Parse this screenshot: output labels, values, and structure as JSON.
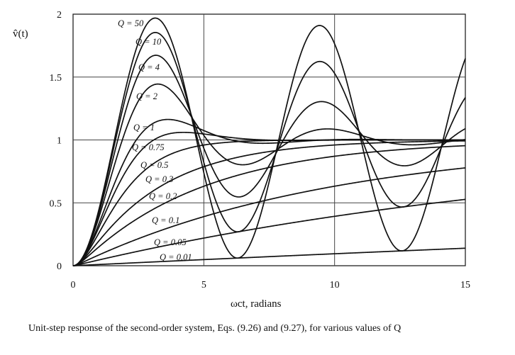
{
  "chart_data": {
    "type": "line",
    "xlabel": "ωct, radians",
    "ylabel": "v̂(t)",
    "xlim": [
      0,
      15
    ],
    "ylim": [
      0,
      2
    ],
    "x_ticks": [
      "0",
      "5",
      "10",
      "15"
    ],
    "y_ticks": [
      "0",
      "0.5",
      "1",
      "1.5",
      "2"
    ],
    "grid": true,
    "series": [
      {
        "name": "Q = 50",
        "Q": 50
      },
      {
        "name": "Q = 10",
        "Q": 10
      },
      {
        "name": "Q = 4",
        "Q": 4
      },
      {
        "name": "Q = 2",
        "Q": 2
      },
      {
        "name": "Q = 1",
        "Q": 1
      },
      {
        "name": "Q = 0.75",
        "Q": 0.75
      },
      {
        "name": "Q = 0.5",
        "Q": 0.5
      },
      {
        "name": "Q = 0.3",
        "Q": 0.3
      },
      {
        "name": "Q = 0.2",
        "Q": 0.2
      },
      {
        "name": "Q = 0.1",
        "Q": 0.1
      },
      {
        "name": "Q = 0.05",
        "Q": 0.05
      },
      {
        "name": "Q = 0.01",
        "Q": 0.01
      }
    ],
    "line_color": "#111111"
  },
  "caption": "Unit-step response of the second-order system, Eqs. (9.26) and (9.27), for various values of Q"
}
